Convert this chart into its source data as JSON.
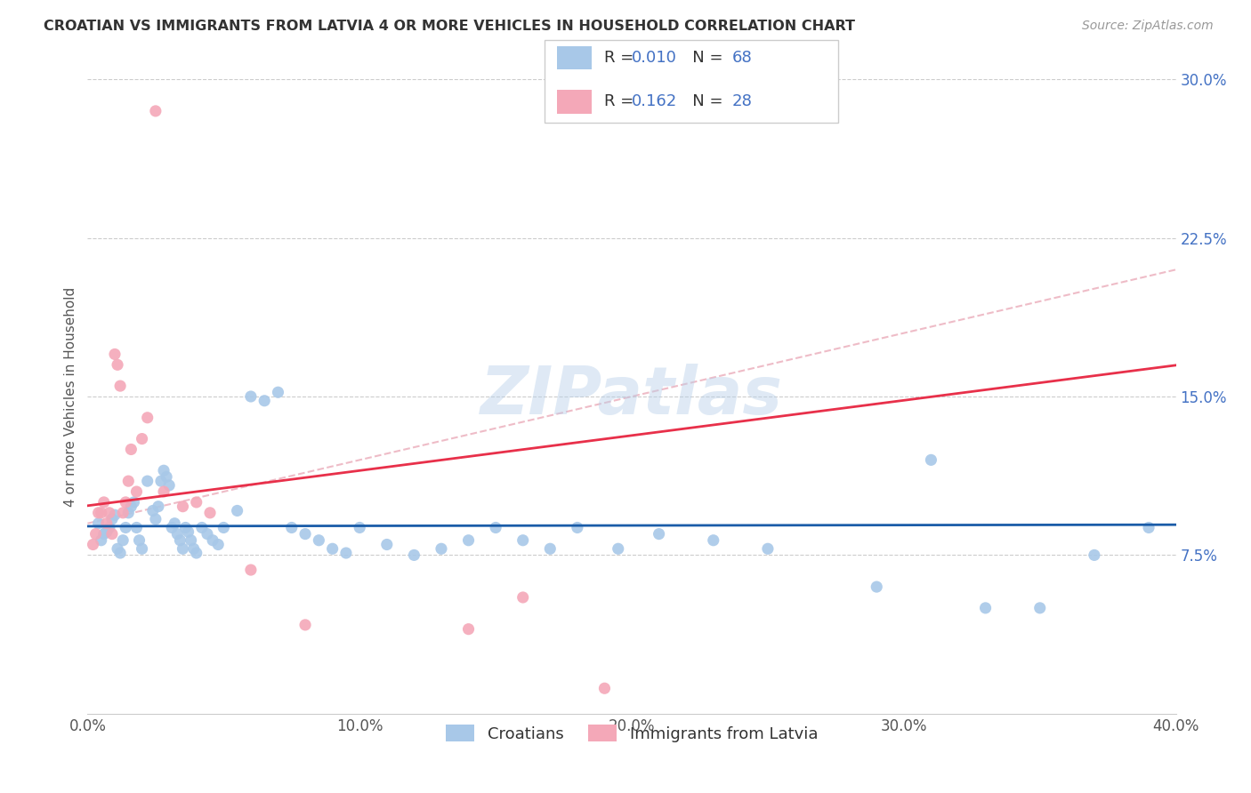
{
  "title": "CROATIAN VS IMMIGRANTS FROM LATVIA 4 OR MORE VEHICLES IN HOUSEHOLD CORRELATION CHART",
  "source": "Source: ZipAtlas.com",
  "ylabel": "4 or more Vehicles in Household",
  "xlim": [
    0.0,
    0.4
  ],
  "ylim": [
    0.0,
    0.3
  ],
  "xtick_labels": [
    "0.0%",
    "10.0%",
    "20.0%",
    "30.0%",
    "40.0%"
  ],
  "xtick_vals": [
    0.0,
    0.1,
    0.2,
    0.3,
    0.4
  ],
  "ytick_labels": [
    "7.5%",
    "15.0%",
    "22.5%",
    "30.0%"
  ],
  "ytick_vals": [
    0.075,
    0.15,
    0.225,
    0.3
  ],
  "croatian_color": "#a8c8e8",
  "latvia_color": "#f4a8b8",
  "trendline_croatian_color": "#1a5ca8",
  "trendline_latvia_color": "#e8304a",
  "dashed_color": "#e8a0b0",
  "R_croatian": 0.01,
  "N_croatian": 68,
  "R_latvia": 0.162,
  "N_latvia": 28,
  "legend_labels": [
    "Croatians",
    "Immigrants from Latvia"
  ],
  "watermark": "ZIPatlas",
  "grid_color": "#cccccc",
  "croatian_x": [
    0.004,
    0.005,
    0.006,
    0.007,
    0.008,
    0.009,
    0.01,
    0.011,
    0.012,
    0.013,
    0.014,
    0.015,
    0.016,
    0.017,
    0.018,
    0.019,
    0.02,
    0.022,
    0.024,
    0.025,
    0.026,
    0.027,
    0.028,
    0.029,
    0.03,
    0.031,
    0.032,
    0.033,
    0.034,
    0.035,
    0.036,
    0.037,
    0.038,
    0.039,
    0.04,
    0.042,
    0.044,
    0.046,
    0.048,
    0.05,
    0.055,
    0.06,
    0.065,
    0.07,
    0.075,
    0.08,
    0.085,
    0.09,
    0.095,
    0.1,
    0.11,
    0.12,
    0.13,
    0.14,
    0.15,
    0.16,
    0.17,
    0.18,
    0.195,
    0.21,
    0.23,
    0.25,
    0.29,
    0.31,
    0.33,
    0.35,
    0.37,
    0.39
  ],
  "croatian_y": [
    0.09,
    0.082,
    0.085,
    0.086,
    0.088,
    0.092,
    0.094,
    0.078,
    0.076,
    0.082,
    0.088,
    0.095,
    0.098,
    0.1,
    0.088,
    0.082,
    0.078,
    0.11,
    0.096,
    0.092,
    0.098,
    0.11,
    0.115,
    0.112,
    0.108,
    0.088,
    0.09,
    0.085,
    0.082,
    0.078,
    0.088,
    0.086,
    0.082,
    0.078,
    0.076,
    0.088,
    0.085,
    0.082,
    0.08,
    0.088,
    0.096,
    0.15,
    0.148,
    0.152,
    0.088,
    0.085,
    0.082,
    0.078,
    0.076,
    0.088,
    0.08,
    0.075,
    0.078,
    0.082,
    0.088,
    0.082,
    0.078,
    0.088,
    0.078,
    0.085,
    0.082,
    0.078,
    0.06,
    0.12,
    0.05,
    0.05,
    0.075,
    0.088
  ],
  "latvia_x": [
    0.002,
    0.003,
    0.004,
    0.005,
    0.006,
    0.007,
    0.008,
    0.009,
    0.01,
    0.011,
    0.012,
    0.013,
    0.014,
    0.015,
    0.016,
    0.018,
    0.02,
    0.022,
    0.025,
    0.028,
    0.035,
    0.04,
    0.045,
    0.06,
    0.08,
    0.14,
    0.16,
    0.19
  ],
  "latvia_y": [
    0.08,
    0.085,
    0.095,
    0.095,
    0.1,
    0.09,
    0.095,
    0.085,
    0.17,
    0.165,
    0.155,
    0.095,
    0.1,
    0.11,
    0.125,
    0.105,
    0.13,
    0.14,
    0.285,
    0.105,
    0.098,
    0.1,
    0.095,
    0.068,
    0.042,
    0.04,
    0.055,
    0.012
  ]
}
